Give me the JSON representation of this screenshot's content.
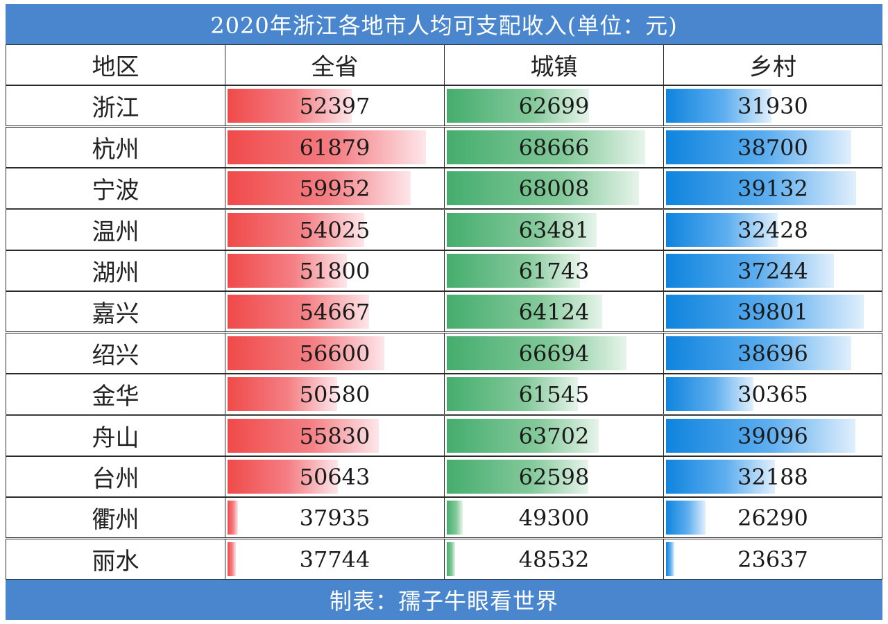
{
  "title": "2020年浙江各地市人均可支配收入(单位：元)",
  "footer": "制表：孺子牛眼看世界",
  "colors": {
    "header_bg": "#4a86cd",
    "province_bar": "#f04a4a",
    "urban_bar": "#45ad6e",
    "rural_bar": "#0f84de"
  },
  "chart_data": {
    "type": "table",
    "columns": [
      "地区",
      "全省",
      "城镇",
      "乡村"
    ],
    "rows": [
      {
        "region": "浙江",
        "province": "52397",
        "urban": "62699",
        "rural": "31930"
      },
      {
        "region": "杭州",
        "province": "61879",
        "urban": "68666",
        "rural": "38700"
      },
      {
        "region": "宁波",
        "province": "59952",
        "urban": "68008",
        "rural": "39132"
      },
      {
        "region": "温州",
        "province": "54025",
        "urban": "63481",
        "rural": "32428"
      },
      {
        "region": "湖州",
        "province": "51800",
        "urban": "61743",
        "rural": "37244"
      },
      {
        "region": "嘉兴",
        "province": "54667",
        "urban": "64124",
        "rural": "39801"
      },
      {
        "region": "绍兴",
        "province": "56600",
        "urban": "66694",
        "rural": "38696"
      },
      {
        "region": "金华",
        "province": "50580",
        "urban": "61545",
        "rural": "30365"
      },
      {
        "region": "舟山",
        "province": "55830",
        "urban": "63702",
        "rural": "39096"
      },
      {
        "region": "台州",
        "province": "50643",
        "urban": "62598",
        "rural": "32188"
      },
      {
        "region": "衢州",
        "province": "37935",
        "urban": "49300",
        "rural": "26290"
      },
      {
        "region": "丽水",
        "province": "37744",
        "urban": "48532",
        "rural": "23637"
      }
    ]
  }
}
